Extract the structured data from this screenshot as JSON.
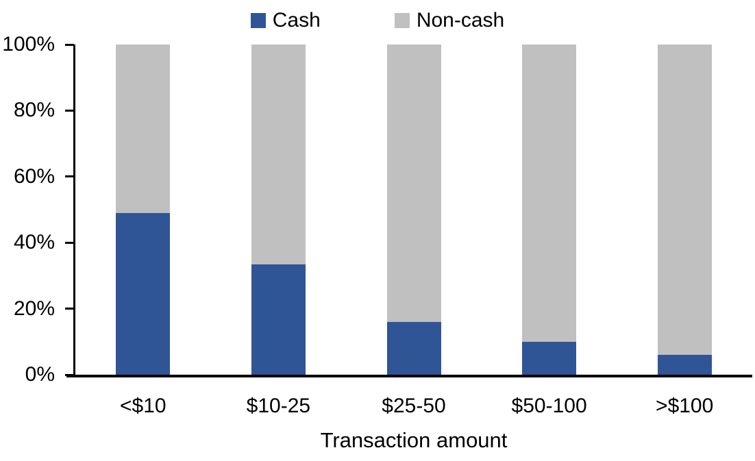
{
  "legend": {
    "items": [
      {
        "label": "Cash",
        "color": "#2F5596"
      },
      {
        "label": "Non-cash",
        "color": "#C0C0C0"
      }
    ]
  },
  "chart_data": {
    "type": "bar",
    "stacked": true,
    "orientation": "vertical",
    "categories": [
      "<$10",
      "$10-25",
      "$25-50",
      "$50-100",
      ">$100"
    ],
    "series": [
      {
        "name": "Cash",
        "color": "#2F5596",
        "values": [
          49,
          33.5,
          16,
          10,
          6
        ]
      },
      {
        "name": "Non-cash",
        "color": "#C0C0C0",
        "values": [
          51,
          66.5,
          84,
          90,
          94
        ]
      }
    ],
    "title": "",
    "xlabel": "Transaction amount",
    "ylabel": "",
    "ylim": [
      0,
      100
    ],
    "ytick_step": 20,
    "yticks": [
      "0%",
      "20%",
      "40%",
      "60%",
      "80%",
      "100%"
    ],
    "grid": false,
    "legend_position": "top-center",
    "axis_color": "#000000",
    "text_color": "#000000",
    "background_color": "#FFFFFF"
  }
}
